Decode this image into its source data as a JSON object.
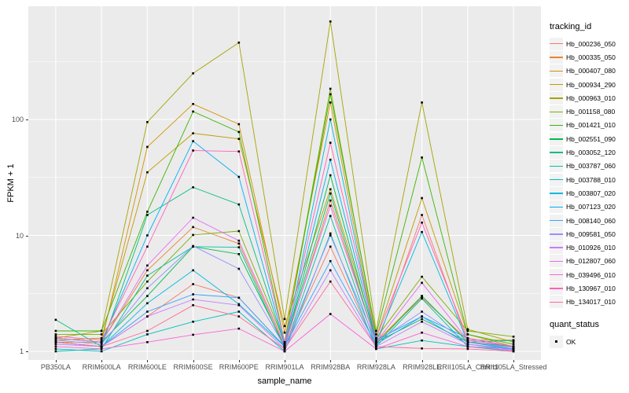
{
  "figure": {
    "background": "#FFFFFF",
    "panel_background": "#EBEBEB",
    "grid_color": "#FFFFFF",
    "tick_label_color": "#4D4D4D",
    "point_color": "#000000"
  },
  "axes": {
    "x_title": "sample_name",
    "y_title": "FPKM + 1",
    "y_tick_labels": [
      "1",
      "10",
      "100"
    ],
    "y_tick_values": [
      1,
      10,
      100
    ]
  },
  "legend": {
    "tracking_title": "tracking_id",
    "quant_title": "quant_status",
    "quant_label": "OK"
  },
  "chart_data": {
    "type": "line",
    "title": "",
    "xlabel": "sample_name",
    "ylabel": "FPKM + 1",
    "x_scale": "categorical",
    "y_scale": "log10",
    "ylim": [
      0.85,
      920
    ],
    "grid": true,
    "legend_position": "right",
    "minor_gridline_values": [
      3.162,
      31.62,
      316.2
    ],
    "categories": [
      "PB350LA",
      "RRIM600LA",
      "RRIM600LE",
      "RRIM600SE",
      "RRIM600PE",
      "RRIM901LA",
      "RRIM928BA",
      "RRIM928LA",
      "RRIM928LE",
      "RRII105LA_Control",
      "RRII105LA_Stressed"
    ],
    "series": [
      {
        "name": "Hb_000236_050",
        "color": "#F8766D",
        "values": [
          1.2,
          1.1,
          2.0,
          3.8,
          2.9,
          1.1,
          8,
          1.1,
          15,
          1.2,
          1.05
        ]
      },
      {
        "name": "Hb_000335_050",
        "color": "#EA8331",
        "values": [
          1.3,
          1.2,
          5,
          11.8,
          8.5,
          1.1,
          20,
          1.2,
          2.9,
          1.25,
          1.25
        ]
      },
      {
        "name": "Hb_000407_080",
        "color": "#D89000",
        "values": [
          1.2,
          1.2,
          58,
          136,
          91,
          1.45,
          140,
          1.2,
          3.0,
          1.2,
          1.1
        ]
      },
      {
        "name": "Hb_000934_290",
        "color": "#C09B00",
        "values": [
          1.25,
          1.3,
          35,
          76,
          68,
          1.65,
          25,
          1.3,
          21,
          1.4,
          1.1
        ]
      },
      {
        "name": "Hb_000963_010",
        "color": "#A3A500",
        "values": [
          1.3,
          1.5,
          95,
          250,
          460,
          1.9,
          700,
          1.5,
          140,
          1.55,
          1.2
        ]
      },
      {
        "name": "Hb_001158_080",
        "color": "#7CAE00",
        "values": [
          1.4,
          1.4,
          4,
          10.1,
          10.9,
          1.2,
          184,
          1.3,
          4.4,
          1.5,
          1.34
        ]
      },
      {
        "name": "Hb_001421_010",
        "color": "#39B600",
        "values": [
          1.5,
          1.5,
          16,
          117,
          78,
          1.2,
          165,
          1.4,
          47,
          1.4,
          1.15
        ]
      },
      {
        "name": "Hb_002551_090",
        "color": "#00BB4E",
        "values": [
          1.3,
          1.2,
          3,
          8,
          6.9,
          1.1,
          33,
          1.2,
          1.9,
          1.2,
          1.1
        ]
      },
      {
        "name": "Hb_003052_120",
        "color": "#00BF7D",
        "values": [
          1.87,
          1.1,
          15,
          26,
          18.5,
          1.15,
          23,
          1.15,
          3.0,
          1.2,
          1.24
        ]
      },
      {
        "name": "Hb_003787_060",
        "color": "#00C1A3",
        "values": [
          1.0,
          1.05,
          4.5,
          8.0,
          7.9,
          1.05,
          14.7,
          1.1,
          2.85,
          1.1,
          1.05
        ]
      },
      {
        "name": "Hb_003788_010",
        "color": "#00BFC4",
        "values": [
          1.05,
          1.0,
          1.4,
          1.8,
          2.2,
          1.0,
          10.4,
          1.05,
          1.24,
          1.1,
          1.0
        ]
      },
      {
        "name": "Hb_003807_020",
        "color": "#00BAE0",
        "values": [
          1.2,
          1.1,
          2.6,
          5.0,
          2.55,
          1.1,
          100,
          1.2,
          10.7,
          1.2,
          1.05
        ]
      },
      {
        "name": "Hb_007123_020",
        "color": "#00B0F6",
        "values": [
          1.3,
          1.2,
          10,
          65,
          32,
          1.15,
          45,
          1.25,
          2.0,
          1.3,
          1.1
        ]
      },
      {
        "name": "Hb_008140_060",
        "color": "#35A2FF",
        "values": [
          1.2,
          1.1,
          2.2,
          3.1,
          2.9,
          1.1,
          6,
          1.15,
          2.0,
          1.15,
          1.05
        ]
      },
      {
        "name": "Hb_009581_050",
        "color": "#9590FF",
        "values": [
          1.25,
          1.15,
          3.5,
          8.1,
          5.15,
          1.1,
          10,
          1.2,
          2.2,
          1.2,
          1.08
        ]
      },
      {
        "name": "Hb_010926_010",
        "color": "#C77CFF",
        "values": [
          1.15,
          1.1,
          2.0,
          2.8,
          2.5,
          1.05,
          5,
          1.1,
          1.8,
          1.15,
          1.03
        ]
      },
      {
        "name": "Hb_012807_060",
        "color": "#E76BF3",
        "values": [
          1.3,
          1.2,
          5.5,
          14.2,
          9.0,
          1.15,
          18,
          1.2,
          3.9,
          1.25,
          1.1
        ]
      },
      {
        "name": "Hb_039496_010",
        "color": "#FA62DB",
        "values": [
          1.1,
          1.05,
          1.2,
          1.39,
          1.57,
          1.0,
          2.1,
          1.05,
          1.45,
          1.1,
          1.02
        ]
      },
      {
        "name": "Hb_130967_010",
        "color": "#FF62BC",
        "values": [
          1.35,
          1.25,
          8,
          54,
          53,
          1.2,
          63,
          1.3,
          12.9,
          1.3,
          1.1
        ]
      },
      {
        "name": "Hb_134017_010",
        "color": "#FF6A98",
        "values": [
          1.2,
          1.1,
          1.5,
          2.5,
          2.0,
          1.05,
          4,
          1.1,
          1.06,
          1.05,
          1.0
        ]
      }
    ]
  }
}
